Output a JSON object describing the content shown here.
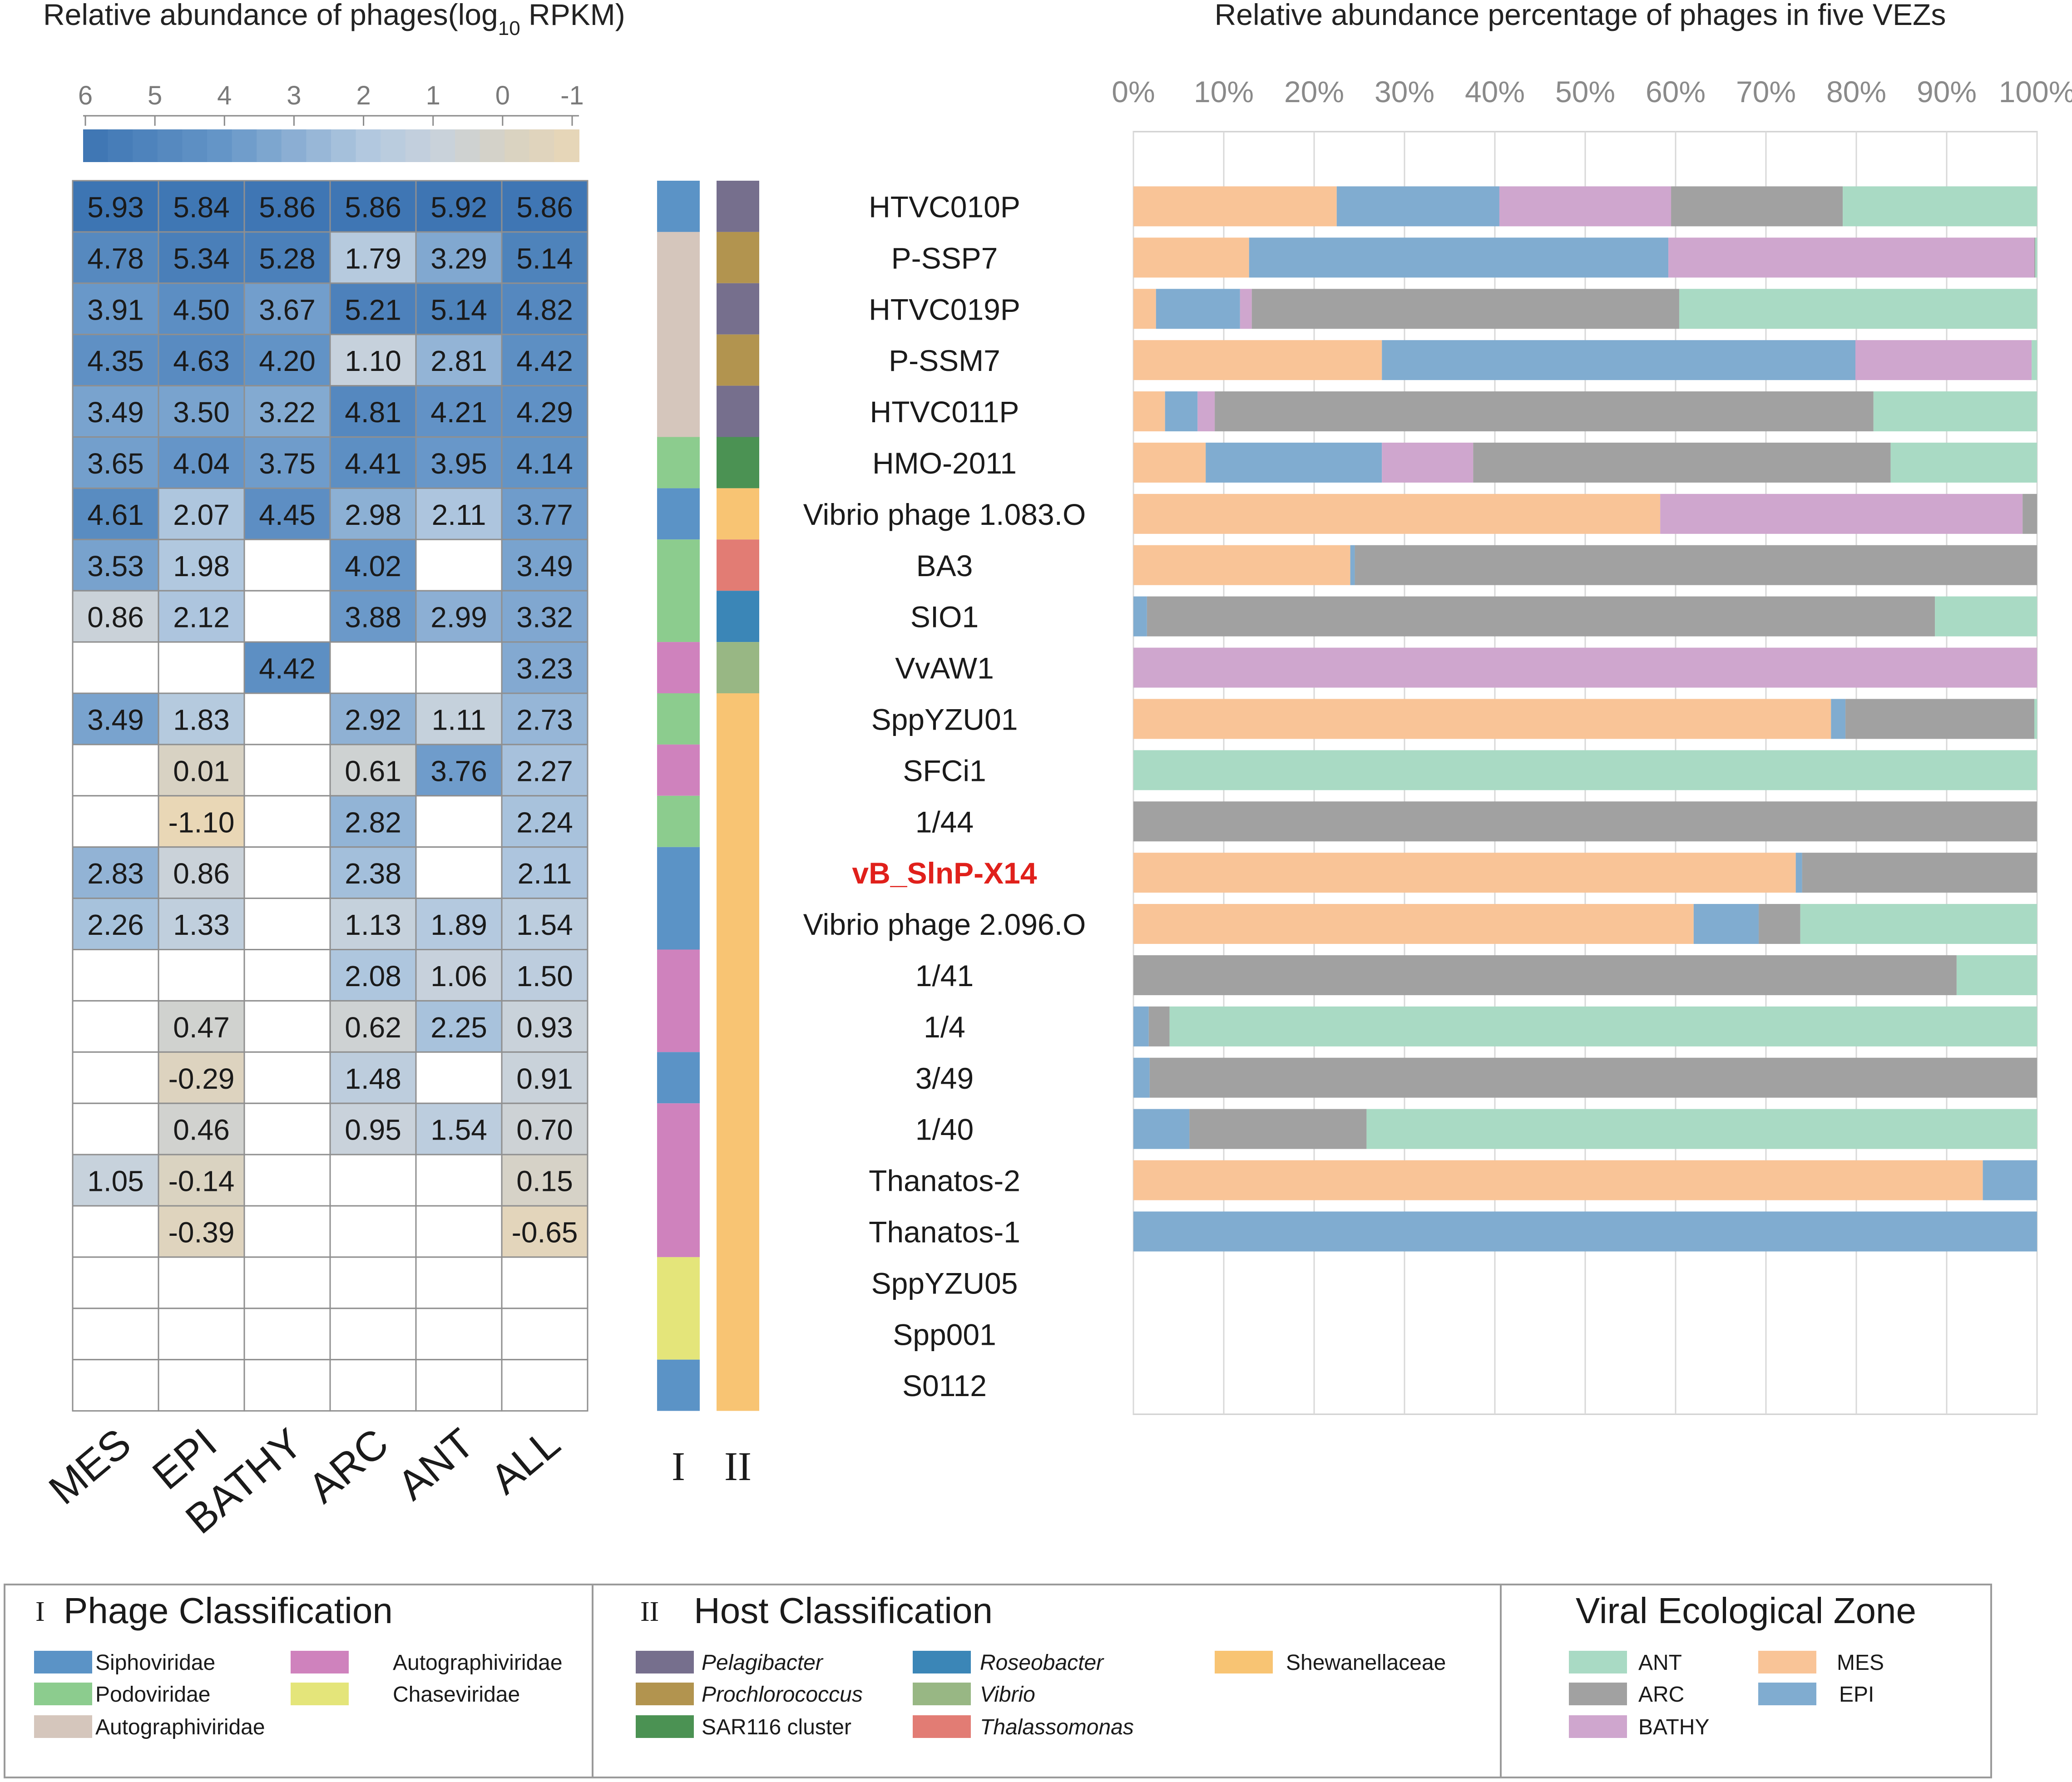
{
  "heatmap": {
    "title_main": "Relative abundance of phages(log",
    "title_sub": "10",
    "title_end": " RPKM)",
    "scale_ticks": [
      "6",
      "5",
      "4",
      "3",
      "2",
      "1",
      "0",
      "-1"
    ],
    "columns": [
      "MES",
      "EPI",
      "BATHY",
      "ARC",
      "ANT",
      "ALL"
    ]
  },
  "bar_chart_title": "Relative abundance percentage of phages in five VEZs",
  "axis_ticks": [
    "0%",
    "10%",
    "20%",
    "30%",
    "40%",
    "50%",
    "60%",
    "70%",
    "80%",
    "90%",
    "100%"
  ],
  "track_labels": [
    "I",
    "II"
  ],
  "highlight_phage": "vB_SlnP-X14",
  "colors": {
    "ANT": "#a9dac4",
    "ARC": "#a1a1a1",
    "BATHY": "#cfa6ce",
    "MES": "#f9c497",
    "EPI": "#80acd0",
    "Siphoviridae": "#5b93c6",
    "Podoviridae": "#8ccc8e",
    "AutographiviridaeTan": "#d5c6bc",
    "AutographiviridaePink": "#cf82bd",
    "Chaseviridae": "#e4e57a",
    "Pelagibacter": "#766f8d",
    "Prochlorococcus": "#b2944f",
    "SAR116": "#4b9253",
    "Roseobacter": "#3b86b7",
    "Vibrio": "#98b784",
    "Thalassomonas": "#e27c74",
    "Shewanellaceae": "#f8c473"
  },
  "chart_data": [
    {
      "type": "heatmap",
      "title": "Relative abundance of phages(log10 RPKM)",
      "columns": [
        "MES",
        "EPI",
        "BATHY",
        "ARC",
        "ANT",
        "ALL"
      ],
      "color_range": [
        -1,
        6
      ],
      "rows": [
        {
          "phage": "HTVC010P",
          "values": [
            "5.93",
            "5.84",
            "5.86",
            "5.86",
            "5.92",
            "5.86"
          ]
        },
        {
          "phage": "P-SSP7",
          "values": [
            "4.78",
            "5.34",
            "5.28",
            "1.79",
            "3.29",
            "5.14"
          ]
        },
        {
          "phage": "HTVC019P",
          "values": [
            "3.91",
            "4.50",
            "3.67",
            "5.21",
            "5.14",
            "4.82"
          ]
        },
        {
          "phage": "P-SSM7",
          "values": [
            "4.35",
            "4.63",
            "4.20",
            "1.10",
            "2.81",
            "4.42"
          ]
        },
        {
          "phage": "HTVC011P",
          "values": [
            "3.49",
            "3.50",
            "3.22",
            "4.81",
            "4.21",
            "4.29"
          ]
        },
        {
          "phage": "HMO-2011",
          "values": [
            "3.65",
            "4.04",
            "3.75",
            "4.41",
            "3.95",
            "4.14"
          ]
        },
        {
          "phage": "Vibrio phage 1.083.O",
          "values": [
            "4.61",
            "2.07",
            "4.45",
            "2.98",
            "2.11",
            "3.77"
          ]
        },
        {
          "phage": "BA3",
          "values": [
            "3.53",
            "1.98",
            "",
            "4.02",
            "",
            "3.49"
          ]
        },
        {
          "phage": "SIO1",
          "values": [
            "0.86",
            "2.12",
            "",
            "3.88",
            "2.99",
            "3.32"
          ]
        },
        {
          "phage": "VvAW1",
          "values": [
            "",
            "",
            "4.42",
            "",
            "",
            "3.23"
          ]
        },
        {
          "phage": "SppYZU01",
          "values": [
            "3.49",
            "1.83",
            "",
            "2.92",
            "1.11",
            "2.73"
          ]
        },
        {
          "phage": "SFCi1",
          "values": [
            "",
            "0.01",
            "",
            "0.61",
            "3.76",
            "2.27"
          ]
        },
        {
          "phage": "1/44",
          "values": [
            "",
            "-1.10",
            "",
            "2.82",
            "",
            "2.24"
          ]
        },
        {
          "phage": "vB_SlnP-X14",
          "values": [
            "2.83",
            "0.86",
            "",
            "2.38",
            "",
            "2.11"
          ]
        },
        {
          "phage": "Vibrio phage 2.096.O",
          "values": [
            "2.26",
            "1.33",
            "",
            "1.13",
            "1.89",
            "1.54"
          ]
        },
        {
          "phage": "1/41",
          "values": [
            "",
            "",
            "",
            "2.08",
            "1.06",
            "1.50"
          ]
        },
        {
          "phage": "1/4",
          "values": [
            "",
            "0.47",
            "",
            "0.62",
            "2.25",
            "0.93"
          ]
        },
        {
          "phage": "3/49",
          "values": [
            "",
            "-0.29",
            "",
            "1.48",
            "",
            "0.91"
          ]
        },
        {
          "phage": "1/40",
          "values": [
            "",
            "0.46",
            "",
            "0.95",
            "1.54",
            "0.70"
          ]
        },
        {
          "phage": "Thanatos-2",
          "values": [
            "1.05",
            "-0.14",
            "",
            "",
            "",
            "0.15"
          ]
        },
        {
          "phage": "Thanatos-1",
          "values": [
            "",
            "-0.39",
            "",
            "",
            "",
            "-0.65"
          ]
        },
        {
          "phage": "SppYZU05",
          "values": [
            "",
            "",
            "",
            "",
            "",
            ""
          ]
        },
        {
          "phage": "Spp001",
          "values": [
            "",
            "",
            "",
            "",
            "",
            ""
          ]
        },
        {
          "phage": "S0112",
          "values": [
            "",
            "",
            "",
            "",
            "",
            ""
          ]
        }
      ]
    },
    {
      "type": "bar",
      "stacked": "horizontal-100%",
      "title": "Relative abundance percentage of phages in five VEZs",
      "xlim": [
        0,
        100
      ],
      "series_order": [
        "MES",
        "EPI",
        "BATHY",
        "ARC",
        "ANT"
      ],
      "categories": [
        "HTVC010P",
        "P-SSP7",
        "HTVC019P",
        "P-SSM7",
        "HTVC011P",
        "HMO-2011",
        "Vibrio phage 1.083.O",
        "BA3",
        "SIO1",
        "VvAW1",
        "SppYZU01",
        "SFCi1",
        "1/44",
        "vB_SlnP-X14",
        "Vibrio phage 2.096.O",
        "1/41",
        "1/4",
        "3/49",
        "1/40",
        "Thanatos-2",
        "Thanatos-1",
        "SppYZU05",
        "Spp001",
        "S0112"
      ],
      "series": [
        {
          "name": "MES",
          "values": [
            22.5,
            12.8,
            2.5,
            27.5,
            3.5,
            8.0,
            58.3,
            24.0,
            0,
            0,
            77.2,
            0,
            0,
            73.3,
            62.0,
            0,
            0,
            0,
            0,
            94.0,
            0,
            0,
            0,
            0
          ]
        },
        {
          "name": "EPI",
          "values": [
            18.0,
            46.4,
            9.3,
            52.4,
            3.6,
            19.5,
            0,
            0.5,
            1.5,
            0,
            1.6,
            0,
            0,
            0.7,
            7.2,
            0,
            1.7,
            1.8,
            6.2,
            6.0,
            100,
            0,
            0,
            0
          ]
        },
        {
          "name": "BATHY",
          "values": [
            19.0,
            40.5,
            1.3,
            19.5,
            1.9,
            10.1,
            40.1,
            0,
            0,
            100,
            0,
            0,
            0,
            0,
            0,
            0,
            0,
            0,
            0,
            0,
            0,
            0,
            0,
            0
          ]
        },
        {
          "name": "ARC",
          "values": [
            19.0,
            0.1,
            47.3,
            0,
            72.9,
            46.2,
            1.6,
            75.5,
            87.2,
            0,
            20.9,
            0,
            100,
            26.0,
            4.6,
            91.1,
            2.3,
            98.2,
            19.6,
            0,
            0,
            0,
            0,
            0
          ]
        },
        {
          "name": "ANT",
          "values": [
            21.5,
            0.2,
            39.6,
            0.6,
            18.1,
            16.2,
            0,
            0,
            11.3,
            0,
            0.3,
            100,
            0,
            0,
            26.2,
            8.9,
            96.0,
            0,
            74.2,
            0,
            0,
            0,
            0,
            0
          ]
        }
      ]
    }
  ],
  "tracks": {
    "phage_classification": [
      "Siphoviridae",
      "AutographiviridaeTan",
      "AutographiviridaeTan",
      "AutographiviridaeTan",
      "AutographiviridaeTan",
      "Podoviridae",
      "Siphoviridae",
      "Podoviridae",
      "Podoviridae",
      "AutographiviridaePink",
      "Podoviridae",
      "AutographiviridaePink",
      "Podoviridae",
      "Siphoviridae",
      "Siphoviridae",
      "AutographiviridaePink",
      "AutographiviridaePink",
      "Siphoviridae",
      "AutographiviridaePink",
      "AutographiviridaePink",
      "AutographiviridaePink",
      "Chaseviridae",
      "Chaseviridae",
      "Siphoviridae"
    ],
    "host_classification": [
      "Pelagibacter",
      "Prochlorococcus",
      "Pelagibacter",
      "Prochlorococcus",
      "Pelagibacter",
      "SAR116",
      "Shewanellaceae",
      "Thalassomonas",
      "Roseobacter",
      "Vibrio",
      "Shewanellaceae",
      "Shewanellaceae",
      "Shewanellaceae",
      "Shewanellaceae",
      "Shewanellaceae",
      "Shewanellaceae",
      "Shewanellaceae",
      "Shewanellaceae",
      "Shewanellaceae",
      "Shewanellaceae",
      "Shewanellaceae",
      "Shewanellaceae",
      "Shewanellaceae",
      "Shewanellaceae"
    ]
  },
  "legend": {
    "phage": {
      "roman": "I",
      "title": "Phage Classification",
      "items": [
        {
          "label": "Siphoviridae",
          "color": "Siphoviridae"
        },
        {
          "label": "Podoviridae",
          "color": "Podoviridae"
        },
        {
          "label": "Autographiviridae",
          "color": "AutographiviridaeTan"
        },
        {
          "label": "Autographiviridae",
          "color": "AutographiviridaePink"
        },
        {
          "label": "Chaseviridae",
          "color": "Chaseviridae"
        }
      ]
    },
    "host": {
      "roman": "II",
      "title": "Host Classification",
      "items": [
        {
          "label": "Pelagibacter",
          "color": "Pelagibacter",
          "italic": true
        },
        {
          "label": "Prochlorococcus",
          "color": "Prochlorococcus",
          "italic": true
        },
        {
          "label": "SAR116 cluster",
          "color": "SAR116",
          "italic": false
        },
        {
          "label": "Roseobacter",
          "color": "Roseobacter",
          "italic": true
        },
        {
          "label": "Vibrio",
          "color": "Vibrio",
          "italic": true
        },
        {
          "label": "Thalassomonas",
          "color": "Thalassomonas",
          "italic": true
        },
        {
          "label": "Shewanellaceae",
          "color": "Shewanellaceae",
          "italic": false
        }
      ]
    },
    "vez": {
      "title": "Viral Ecological Zone",
      "items": [
        {
          "label": "ANT",
          "color": "ANT"
        },
        {
          "label": "ARC",
          "color": "ARC"
        },
        {
          "label": "BATHY",
          "color": "BATHY"
        },
        {
          "label": "MES",
          "color": "MES"
        },
        {
          "label": "EPI",
          "color": "EPI"
        }
      ]
    }
  }
}
